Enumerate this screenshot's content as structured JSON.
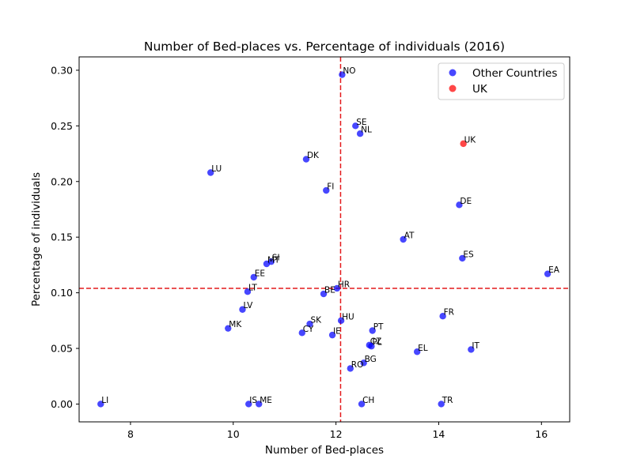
{
  "chart_data": {
    "type": "scatter",
    "title": "Number of Bed-places vs. Percentage of individuals (2016)",
    "xlabel": "Number of Bed-places",
    "ylabel": "Percentage of individuals",
    "xlim": [
      7.0,
      16.55
    ],
    "ylim": [
      -0.016,
      0.312
    ],
    "xticks": [
      8,
      10,
      12,
      14,
      16
    ],
    "yticks": [
      0.0,
      0.05,
      0.1,
      0.15,
      0.2,
      0.25,
      0.3
    ],
    "ytick_labels": [
      "0.00",
      "0.05",
      "0.10",
      "0.15",
      "0.20",
      "0.25",
      "0.30"
    ],
    "grid": false,
    "legend_position": "top-right",
    "reference_lines": {
      "vertical_x": 12.09,
      "horizontal_y": 0.104,
      "color": "#e41a1c",
      "style": "dashed"
    },
    "series": [
      {
        "name": "Other Countries",
        "color": "#0000ff",
        "points": [
          {
            "label": "NO",
            "x": 12.12,
            "y": 0.296
          },
          {
            "label": "SE",
            "x": 12.38,
            "y": 0.25
          },
          {
            "label": "NL",
            "x": 12.47,
            "y": 0.243
          },
          {
            "label": "DK",
            "x": 11.42,
            "y": 0.22
          },
          {
            "label": "LU",
            "x": 9.56,
            "y": 0.208
          },
          {
            "label": "FI",
            "x": 11.81,
            "y": 0.192
          },
          {
            "label": "DE",
            "x": 14.4,
            "y": 0.179
          },
          {
            "label": "AT",
            "x": 13.31,
            "y": 0.148
          },
          {
            "label": "ES",
            "x": 14.46,
            "y": 0.131
          },
          {
            "label": "SI",
            "x": 10.74,
            "y": 0.128
          },
          {
            "label": "MT",
            "x": 10.65,
            "y": 0.126
          },
          {
            "label": "EA",
            "x": 16.12,
            "y": 0.117
          },
          {
            "label": "EE",
            "x": 10.4,
            "y": 0.114
          },
          {
            "label": "HR",
            "x": 12.02,
            "y": 0.104
          },
          {
            "label": "LT",
            "x": 10.28,
            "y": 0.101
          },
          {
            "label": "BE",
            "x": 11.76,
            "y": 0.099
          },
          {
            "label": "LV",
            "x": 10.18,
            "y": 0.085
          },
          {
            "label": "FR",
            "x": 14.08,
            "y": 0.079
          },
          {
            "label": "HU",
            "x": 12.1,
            "y": 0.075
          },
          {
            "label": "SK",
            "x": 11.49,
            "y": 0.072
          },
          {
            "label": "MK",
            "x": 9.9,
            "y": 0.068
          },
          {
            "label": "PT",
            "x": 12.71,
            "y": 0.066
          },
          {
            "label": "CY",
            "x": 11.34,
            "y": 0.064
          },
          {
            "label": "IE",
            "x": 11.93,
            "y": 0.062
          },
          {
            "label": "CZ",
            "x": 12.65,
            "y": 0.053
          },
          {
            "label": "PL",
            "x": 12.69,
            "y": 0.052
          },
          {
            "label": "IT",
            "x": 14.63,
            "y": 0.049
          },
          {
            "label": "EL",
            "x": 13.58,
            "y": 0.047
          },
          {
            "label": "BG",
            "x": 12.54,
            "y": 0.037
          },
          {
            "label": "RO",
            "x": 12.28,
            "y": 0.032
          },
          {
            "label": "LI",
            "x": 7.42,
            "y": 0.0
          },
          {
            "label": "IS",
            "x": 10.3,
            "y": 0.0
          },
          {
            "label": "ME",
            "x": 10.5,
            "y": 0.0
          },
          {
            "label": "CH",
            "x": 12.5,
            "y": 0.0
          },
          {
            "label": "TR",
            "x": 14.05,
            "y": 0.0
          }
        ]
      },
      {
        "name": "UK",
        "color": "#ff0000",
        "points": [
          {
            "label": "UK",
            "x": 14.48,
            "y": 0.234
          }
        ]
      }
    ]
  }
}
